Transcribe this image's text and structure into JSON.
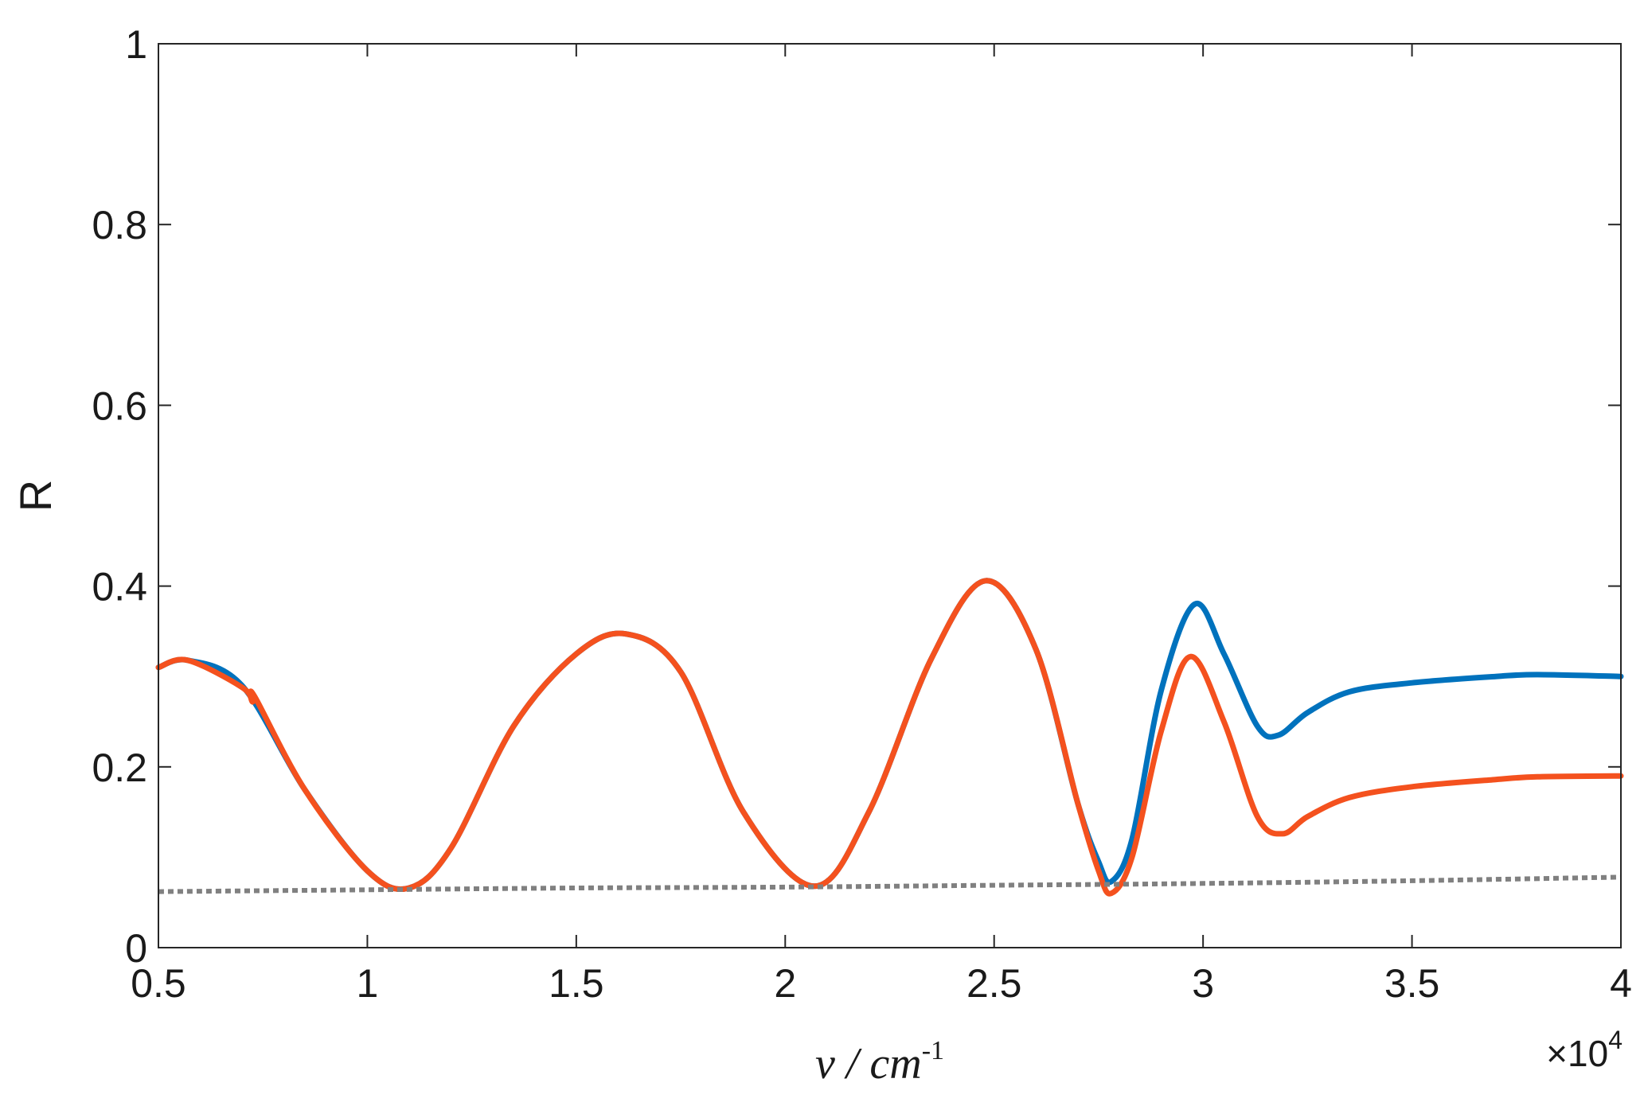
{
  "chart_data": {
    "type": "line",
    "xlabel": "ν / cm",
    "xlabel_superscript": "-1",
    "ylabel": "R",
    "x_multiplier_label": "×10",
    "x_multiplier_superscript": "4",
    "xlim": [
      5000,
      40000
    ],
    "ylim": [
      0,
      1
    ],
    "x_ticks": [
      5000,
      10000,
      15000,
      20000,
      25000,
      30000,
      35000,
      40000
    ],
    "x_tick_labels": [
      "0.5",
      "1",
      "1.5",
      "2",
      "2.5",
      "3",
      "3.5",
      "4"
    ],
    "y_ticks": [
      0,
      0.2,
      0.4,
      0.6,
      0.8,
      1
    ],
    "y_tick_labels": [
      "0",
      "0.2",
      "0.4",
      "0.6",
      "0.8",
      "1"
    ],
    "grid": false,
    "series": [
      {
        "color": "#0072bd",
        "style": "solid",
        "x": [
          5000,
          5700,
          7000,
          8500,
          10000,
          11000,
          12000,
          13500,
          15000,
          16200,
          17500,
          19000,
          20700,
          22000,
          23500,
          24800,
          26000,
          27000,
          27500,
          27800,
          28300,
          29000,
          29800,
          30500,
          31300,
          31800,
          32500,
          33500,
          35000,
          37000,
          38000,
          40000
        ],
        "y": [
          0.31,
          0.318,
          0.29,
          0.175,
          0.085,
          0.066,
          0.11,
          0.245,
          0.325,
          0.347,
          0.305,
          0.15,
          0.068,
          0.15,
          0.32,
          0.406,
          0.33,
          0.16,
          0.095,
          0.073,
          0.12,
          0.285,
          0.38,
          0.325,
          0.245,
          0.235,
          0.26,
          0.283,
          0.293,
          0.3,
          0.302,
          0.3
        ]
      },
      {
        "color": "#f4511e",
        "style": "solid",
        "x": [
          5000,
          5700,
          7000,
          7250,
          7300,
          8500,
          10000,
          11000,
          12000,
          13500,
          15000,
          16200,
          17500,
          19000,
          20700,
          22000,
          23500,
          24800,
          26000,
          27000,
          27500,
          27800,
          28300,
          29000,
          29700,
          30500,
          31300,
          31900,
          32500,
          33500,
          35000,
          37000,
          38000,
          40000
        ],
        "y": [
          0.31,
          0.318,
          0.288,
          0.272,
          0.278,
          0.175,
          0.085,
          0.066,
          0.11,
          0.245,
          0.325,
          0.347,
          0.305,
          0.15,
          0.068,
          0.15,
          0.32,
          0.406,
          0.33,
          0.16,
          0.085,
          0.06,
          0.1,
          0.24,
          0.322,
          0.25,
          0.145,
          0.126,
          0.145,
          0.166,
          0.178,
          0.186,
          0.189,
          0.19
        ]
      },
      {
        "color": "#808080",
        "style": "dotted",
        "x": [
          5000,
          10000,
          15000,
          20000,
          25000,
          30000,
          35000,
          40000
        ],
        "y": [
          0.062,
          0.064,
          0.066,
          0.067,
          0.069,
          0.071,
          0.074,
          0.078
        ]
      }
    ]
  }
}
